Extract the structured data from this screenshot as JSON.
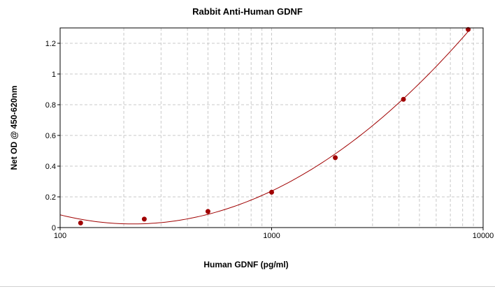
{
  "chart_data": {
    "type": "scatter",
    "title": "Rabbit Anti-Human GDNF",
    "xlabel": "Human GDNF (pg/ml)",
    "ylabel": "Net OD @ 450-620nm",
    "x_scale": "log",
    "xlim": [
      100,
      10000
    ],
    "ylim": [
      0,
      1.3
    ],
    "x_ticks": [
      100,
      1000,
      10000
    ],
    "x_tick_labels": [
      "100",
      "1000",
      "10000"
    ],
    "y_ticks": [
      0,
      0.2,
      0.4,
      0.6,
      0.8,
      1,
      1.2
    ],
    "y_tick_labels": [
      "0",
      "0.2",
      "0.4",
      "0.6",
      "0.8",
      "1",
      "1.2"
    ],
    "grid": true,
    "legend": "none",
    "colors": {
      "marker": "#a00000",
      "curve": "#a00000",
      "grid": "#c8c8c8"
    },
    "series": [
      {
        "x": [
          125,
          250,
          500,
          1000,
          2000,
          4200,
          8500
        ],
        "y": [
          0.03,
          0.055,
          0.105,
          0.23,
          0.455,
          0.835,
          1.29
        ]
      }
    ]
  }
}
